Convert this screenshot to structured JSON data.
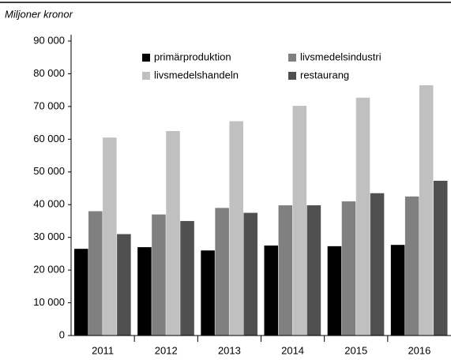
{
  "chart_data": {
    "type": "bar",
    "ylabel": "Miljoner kronor",
    "categories": [
      "2011",
      "2012",
      "2013",
      "2014",
      "2015",
      "2016"
    ],
    "series": [
      {
        "name": "primärproduktion",
        "color": "#000000",
        "values": [
          26500,
          27000,
          26000,
          27500,
          27300,
          27700
        ]
      },
      {
        "name": "livsmedelsindustri",
        "color": "#808080",
        "values": [
          38000,
          37000,
          39000,
          39800,
          41000,
          42500
        ]
      },
      {
        "name": "livsmedelshandeln",
        "color": "#c0c0c0",
        "values": [
          60500,
          62500,
          65500,
          70200,
          72700,
          76500
        ]
      },
      {
        "name": "restaurang",
        "color": "#505050",
        "values": [
          31000,
          35000,
          37500,
          39800,
          43500,
          47300
        ]
      }
    ],
    "ylim": [
      0,
      90000
    ],
    "yticks": [
      0,
      {
        "value": 10000,
        "label": "10 000"
      },
      {
        "value": 20000,
        "label": "20 000"
      },
      {
        "value": 30000,
        "label": "30 000"
      },
      {
        "value": 40000,
        "label": "40 000"
      },
      {
        "value": 50000,
        "label": "50 000"
      },
      {
        "value": 60000,
        "label": "60 000"
      },
      {
        "value": 70000,
        "label": "70 000"
      },
      {
        "value": 80000,
        "label": "80 000"
      },
      {
        "value": 90000,
        "label": "90 000"
      }
    ],
    "legend": "top"
  }
}
